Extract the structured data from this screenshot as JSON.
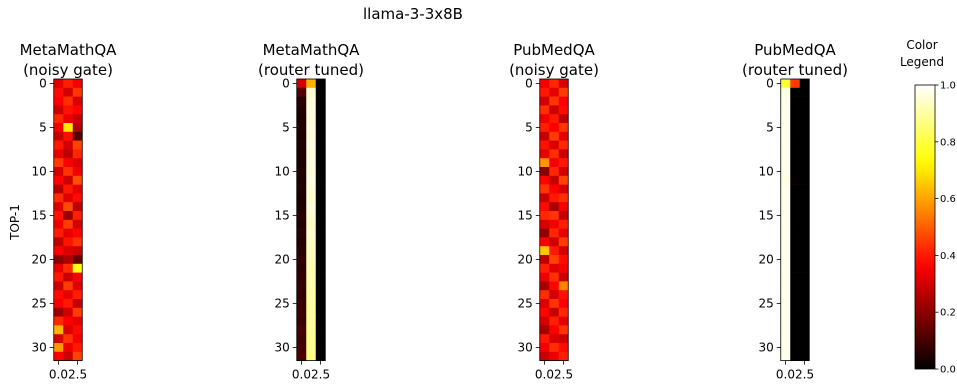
{
  "figure": {
    "title": "llama-3-3x8B",
    "ylabel": "TOP-1"
  },
  "colors": {
    "cmap": "hot",
    "stops": [
      "#000000",
      "#e60000",
      "#ffd200",
      "#ffffff"
    ]
  },
  "colorbar": {
    "label_line1": "Color",
    "label_line2": "Legend",
    "range": [
      0.0,
      1.0
    ],
    "ticks": [
      0.0,
      0.2,
      0.4,
      0.6,
      0.8,
      1.0
    ],
    "tick_labels": [
      "0.0",
      "0.2",
      "0.4",
      "0.6",
      "0.8",
      "1.0"
    ]
  },
  "chart_data": [
    {
      "type": "heatmap",
      "title_line1": "MetaMathQA",
      "title_line2": "(noisy gate)",
      "ylabel": "TOP-1",
      "y_ticks": [
        0,
        5,
        10,
        15,
        20,
        25,
        30
      ],
      "x_tick_label": "0.02.5",
      "rows": 32,
      "cols": 3,
      "values": [
        [
          0.32,
          0.41,
          0.35
        ],
        [
          0.38,
          0.3,
          0.44
        ],
        [
          0.36,
          0.43,
          0.31
        ],
        [
          0.29,
          0.39,
          0.37
        ],
        [
          0.42,
          0.34,
          0.28
        ],
        [
          0.35,
          0.7,
          0.25
        ],
        [
          0.28,
          0.38,
          0.12
        ],
        [
          0.4,
          0.3,
          0.46
        ],
        [
          0.33,
          0.27,
          0.42
        ],
        [
          0.45,
          0.36,
          0.31
        ],
        [
          0.3,
          0.44,
          0.35
        ],
        [
          0.37,
          0.29,
          0.48
        ],
        [
          0.26,
          0.4,
          0.33
        ],
        [
          0.43,
          0.32,
          0.38
        ],
        [
          0.31,
          0.47,
          0.27
        ],
        [
          0.39,
          0.22,
          0.41
        ],
        [
          0.34,
          0.45,
          0.3
        ],
        [
          0.41,
          0.33,
          0.37
        ],
        [
          0.27,
          0.39,
          0.44
        ],
        [
          0.36,
          0.31,
          0.29
        ],
        [
          0.2,
          0.25,
          0.15
        ],
        [
          0.33,
          0.43,
          0.75
        ],
        [
          0.4,
          0.29,
          0.36
        ],
        [
          0.29,
          0.45,
          0.32
        ],
        [
          0.38,
          0.33,
          0.41
        ],
        [
          0.35,
          0.4,
          0.28
        ],
        [
          0.22,
          0.3,
          0.45
        ],
        [
          0.42,
          0.36,
          0.33
        ],
        [
          0.62,
          0.31,
          0.38
        ],
        [
          0.3,
          0.44,
          0.35
        ],
        [
          0.58,
          0.34,
          0.4
        ],
        [
          0.36,
          0.29,
          0.46
        ]
      ]
    },
    {
      "type": "heatmap",
      "title_line1": "MetaMathQA",
      "title_line2": "(router tuned)",
      "y_ticks": [
        0,
        5,
        10,
        15,
        20,
        25,
        30
      ],
      "x_tick_label": "0.02.5",
      "rows": 32,
      "cols": 3,
      "values": [
        [
          0.3,
          0.62,
          0.0
        ],
        [
          0.12,
          0.95,
          0.0
        ],
        [
          0.06,
          0.96,
          0.0
        ],
        [
          0.05,
          0.97,
          0.0
        ],
        [
          0.04,
          0.96,
          0.0
        ],
        [
          0.05,
          0.97,
          0.0
        ],
        [
          0.04,
          0.96,
          0.0
        ],
        [
          0.05,
          0.97,
          0.0
        ],
        [
          0.04,
          0.96,
          0.0
        ],
        [
          0.04,
          0.97,
          0.0
        ],
        [
          0.05,
          0.96,
          0.0
        ],
        [
          0.04,
          0.97,
          0.0
        ],
        [
          0.05,
          0.96,
          0.0
        ],
        [
          0.04,
          0.95,
          0.0
        ],
        [
          0.05,
          0.96,
          0.0
        ],
        [
          0.06,
          0.95,
          0.0
        ],
        [
          0.05,
          0.94,
          0.0
        ],
        [
          0.06,
          0.95,
          0.0
        ],
        [
          0.05,
          0.94,
          0.0
        ],
        [
          0.06,
          0.93,
          0.0
        ],
        [
          0.07,
          0.93,
          0.0
        ],
        [
          0.06,
          0.92,
          0.0
        ],
        [
          0.07,
          0.92,
          0.0
        ],
        [
          0.08,
          0.91,
          0.0
        ],
        [
          0.07,
          0.91,
          0.0
        ],
        [
          0.08,
          0.9,
          0.0
        ],
        [
          0.09,
          0.9,
          0.0
        ],
        [
          0.08,
          0.89,
          0.0
        ],
        [
          0.1,
          0.89,
          0.0
        ],
        [
          0.09,
          0.88,
          0.0
        ],
        [
          0.1,
          0.88,
          0.0
        ],
        [
          0.11,
          0.87,
          0.0
        ]
      ]
    },
    {
      "type": "heatmap",
      "title_line1": "PubMedQA",
      "title_line2": "(noisy gate)",
      "y_ticks": [
        0,
        5,
        10,
        15,
        20,
        25,
        30
      ],
      "x_tick_label": "0.02.5",
      "rows": 32,
      "cols": 3,
      "values": [
        [
          0.35,
          0.42,
          0.31
        ],
        [
          0.4,
          0.33,
          0.45
        ],
        [
          0.3,
          0.44,
          0.36
        ],
        [
          0.43,
          0.29,
          0.38
        ],
        [
          0.34,
          0.4,
          0.27
        ],
        [
          0.41,
          0.36,
          0.44
        ],
        [
          0.28,
          0.45,
          0.33
        ],
        [
          0.39,
          0.31,
          0.42
        ],
        [
          0.33,
          0.43,
          0.29
        ],
        [
          0.58,
          0.35,
          0.4
        ],
        [
          0.2,
          0.42,
          0.3
        ],
        [
          0.37,
          0.28,
          0.46
        ],
        [
          0.44,
          0.36,
          0.31
        ],
        [
          0.29,
          0.4,
          0.43
        ],
        [
          0.38,
          0.24,
          0.35
        ],
        [
          0.42,
          0.44,
          0.28
        ],
        [
          0.31,
          0.35,
          0.41
        ],
        [
          0.21,
          0.42,
          0.33
        ],
        [
          0.36,
          0.29,
          0.45
        ],
        [
          0.65,
          0.4,
          0.3
        ],
        [
          0.27,
          0.46,
          0.38
        ],
        [
          0.41,
          0.32,
          0.35
        ],
        [
          0.34,
          0.43,
          0.29
        ],
        [
          0.24,
          0.37,
          0.55
        ],
        [
          0.43,
          0.3,
          0.39
        ],
        [
          0.32,
          0.44,
          0.36
        ],
        [
          0.37,
          0.28,
          0.42
        ],
        [
          0.3,
          0.41,
          0.33
        ],
        [
          0.24,
          0.36,
          0.44
        ],
        [
          0.4,
          0.31,
          0.29
        ],
        [
          0.35,
          0.43,
          0.38
        ],
        [
          0.29,
          0.34,
          0.41
        ]
      ]
    },
    {
      "type": "heatmap",
      "title_line1": "PubMedQA",
      "title_line2": "(router tuned)",
      "y_ticks": [
        0,
        5,
        10,
        15,
        20,
        25,
        30
      ],
      "x_tick_label": "0.02.5",
      "rows": 32,
      "cols": 3,
      "values": [
        [
          0.78,
          0.45,
          0.0
        ],
        [
          0.97,
          0.0,
          0.0
        ],
        [
          0.98,
          0.0,
          0.0
        ],
        [
          0.98,
          0.0,
          0.0
        ],
        [
          0.98,
          0.0,
          0.0
        ],
        [
          0.98,
          0.0,
          0.0
        ],
        [
          0.98,
          0.0,
          0.0
        ],
        [
          0.98,
          0.0,
          0.0
        ],
        [
          0.98,
          0.0,
          0.0
        ],
        [
          0.98,
          0.0,
          0.0
        ],
        [
          0.98,
          0.0,
          0.0
        ],
        [
          0.97,
          0.01,
          0.0
        ],
        [
          0.98,
          0.0,
          0.0
        ],
        [
          0.98,
          0.0,
          0.0
        ],
        [
          0.98,
          0.0,
          0.0
        ],
        [
          0.98,
          0.0,
          0.0
        ],
        [
          0.98,
          0.0,
          0.0
        ],
        [
          0.98,
          0.0,
          0.0
        ],
        [
          0.98,
          0.0,
          0.0
        ],
        [
          0.98,
          0.0,
          0.0
        ],
        [
          0.98,
          0.0,
          0.0
        ],
        [
          0.98,
          0.0,
          0.0
        ],
        [
          0.98,
          0.0,
          0.0
        ],
        [
          0.98,
          0.0,
          0.0
        ],
        [
          0.98,
          0.0,
          0.0
        ],
        [
          0.98,
          0.0,
          0.0
        ],
        [
          0.98,
          0.0,
          0.0
        ],
        [
          0.98,
          0.0,
          0.0
        ],
        [
          0.98,
          0.0,
          0.0
        ],
        [
          0.98,
          0.0,
          0.0
        ],
        [
          0.98,
          0.0,
          0.0
        ],
        [
          0.98,
          0.0,
          0.0
        ]
      ]
    }
  ]
}
